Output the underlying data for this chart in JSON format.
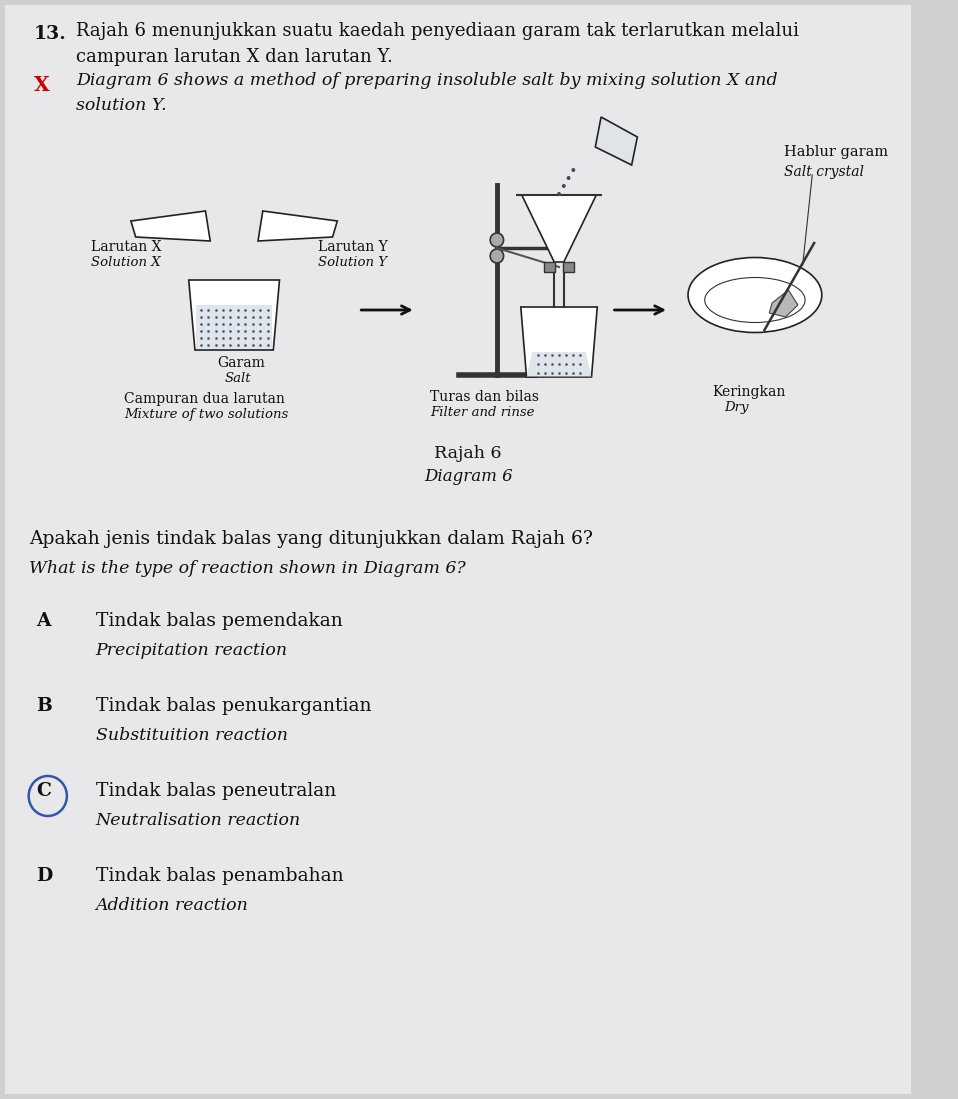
{
  "background_color": "#d0d0d0",
  "page_color": "#e8e8ea",
  "text_color": "#111111",
  "x_mark_color": "#cc0000",
  "circle_color": "#3355aa",
  "question_number": "13.",
  "title_line1": "Rajah 6 menunjukkan suatu kaedah penyediaan garam tak terlarutkan melalui",
  "title_line2": "campuran larutan X dan larutan Y.",
  "title_italic1": "Diagram 6 shows a method of preparing insoluble salt by mixing solution X and",
  "title_italic2": "solution Y.",
  "diagram_title1": "Rajah 6",
  "diagram_title2": "Diagram 6",
  "question_malay": "Apakah jenis tindak balas yang ditunjukkan dalam Rajah 6?",
  "question_english": "What is the type of reaction shown in Diagram 6?",
  "options": [
    {
      "letter": "A",
      "malay": "Tindak balas pemendakan",
      "english": "Precipitation reaction",
      "circled": false
    },
    {
      "letter": "B",
      "malay": "Tindak balas penukargantian",
      "english": "Substituition reaction",
      "circled": false
    },
    {
      "letter": "C",
      "malay": "Tindak balas peneutralan",
      "english": "Neutralisation reaction",
      "circled": true
    },
    {
      "letter": "D",
      "malay": "Tindak balas penambahan",
      "english": "Addition reaction",
      "circled": false
    }
  ],
  "label_larutan_x_1": "Larutan X",
  "label_larutan_x_2": "Solution X",
  "label_larutan_y_1": "Larutan Y",
  "label_larutan_y_2": "Solution Y",
  "label_garam_1": "Garam",
  "label_garam_2": "Salt",
  "label_campuran_1": "Campuran dua larutan",
  "label_campuran_2": "Mixture of two solutions",
  "label_turas_1": "Turas dan bilas",
  "label_turas_2": "Filter and rinse",
  "label_keringkan_1": "Keringkan",
  "label_keringkan_2": "Dry",
  "label_hablur_1": "Hablur garam",
  "label_hablur_2": "Salt crystal"
}
